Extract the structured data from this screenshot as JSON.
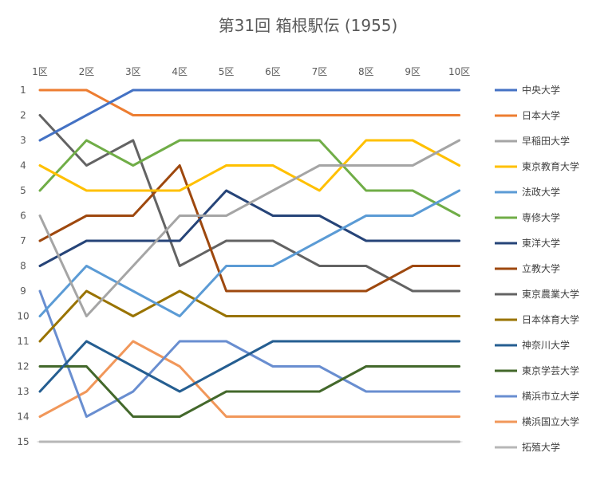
{
  "chart_data": {
    "type": "line",
    "title": "第31回 箱根駅伝 (1955)",
    "categories": [
      "1区",
      "2区",
      "3区",
      "4区",
      "5区",
      "6区",
      "7区",
      "8区",
      "9区",
      "10区"
    ],
    "y_ticks": [
      "1",
      "2",
      "3",
      "4",
      "5",
      "6",
      "7",
      "8",
      "9",
      "10",
      "11",
      "12",
      "13",
      "14",
      "15"
    ],
    "ylim": [
      1,
      15
    ],
    "y_reversed": true,
    "grid": false,
    "legend_position": "right",
    "series": [
      {
        "name": "中央大学",
        "color": "#4472C4",
        "values": [
          3,
          2,
          1,
          1,
          1,
          1,
          1,
          1,
          1,
          1
        ]
      },
      {
        "name": "日本大学",
        "color": "#ED7D31",
        "values": [
          1,
          1,
          2,
          2,
          2,
          2,
          2,
          2,
          2,
          2
        ]
      },
      {
        "name": "早稲田大学",
        "color": "#A5A5A5",
        "values": [
          6,
          10,
          8,
          6,
          6,
          5,
          4,
          4,
          4,
          3
        ]
      },
      {
        "name": "東京教育大学",
        "color": "#FFC000",
        "values": [
          4,
          5,
          5,
          5,
          4,
          4,
          5,
          3,
          3,
          4
        ]
      },
      {
        "name": "法政大学",
        "color": "#5B9BD5",
        "values": [
          10,
          8,
          9,
          10,
          8,
          8,
          7,
          6,
          6,
          5
        ]
      },
      {
        "name": "専修大学",
        "color": "#70AD47",
        "values": [
          5,
          3,
          4,
          3,
          3,
          3,
          3,
          5,
          5,
          6
        ]
      },
      {
        "name": "東洋大学",
        "color": "#264478",
        "values": [
          8,
          7,
          7,
          7,
          5,
          6,
          6,
          7,
          7,
          7
        ]
      },
      {
        "name": "立教大学",
        "color": "#9E480E",
        "values": [
          7,
          6,
          6,
          4,
          9,
          9,
          9,
          9,
          8,
          8
        ]
      },
      {
        "name": "東京農業大学",
        "color": "#636363",
        "values": [
          2,
          4,
          3,
          8,
          7,
          7,
          8,
          8,
          9,
          9
        ]
      },
      {
        "name": "日本体育大学",
        "color": "#997300",
        "values": [
          11,
          9,
          10,
          9,
          10,
          10,
          10,
          10,
          10,
          10
        ]
      },
      {
        "name": "神奈川大学",
        "color": "#255E91",
        "values": [
          13,
          11,
          12,
          13,
          12,
          11,
          11,
          11,
          11,
          11
        ]
      },
      {
        "name": "東京学芸大学",
        "color": "#43682B",
        "values": [
          12,
          12,
          14,
          14,
          13,
          13,
          13,
          12,
          12,
          12
        ]
      },
      {
        "name": "横浜市立大学",
        "color": "#698ED0",
        "values": [
          9,
          14,
          13,
          11,
          11,
          12,
          12,
          13,
          13,
          13
        ]
      },
      {
        "name": "横浜国立大学",
        "color": "#F1975A",
        "values": [
          14,
          13,
          11,
          12,
          14,
          14,
          14,
          14,
          14,
          14
        ]
      },
      {
        "name": "拓殖大学",
        "color": "#B7B7B7",
        "values": [
          15,
          15,
          15,
          15,
          15,
          15,
          15,
          15,
          15,
          15
        ]
      }
    ]
  }
}
